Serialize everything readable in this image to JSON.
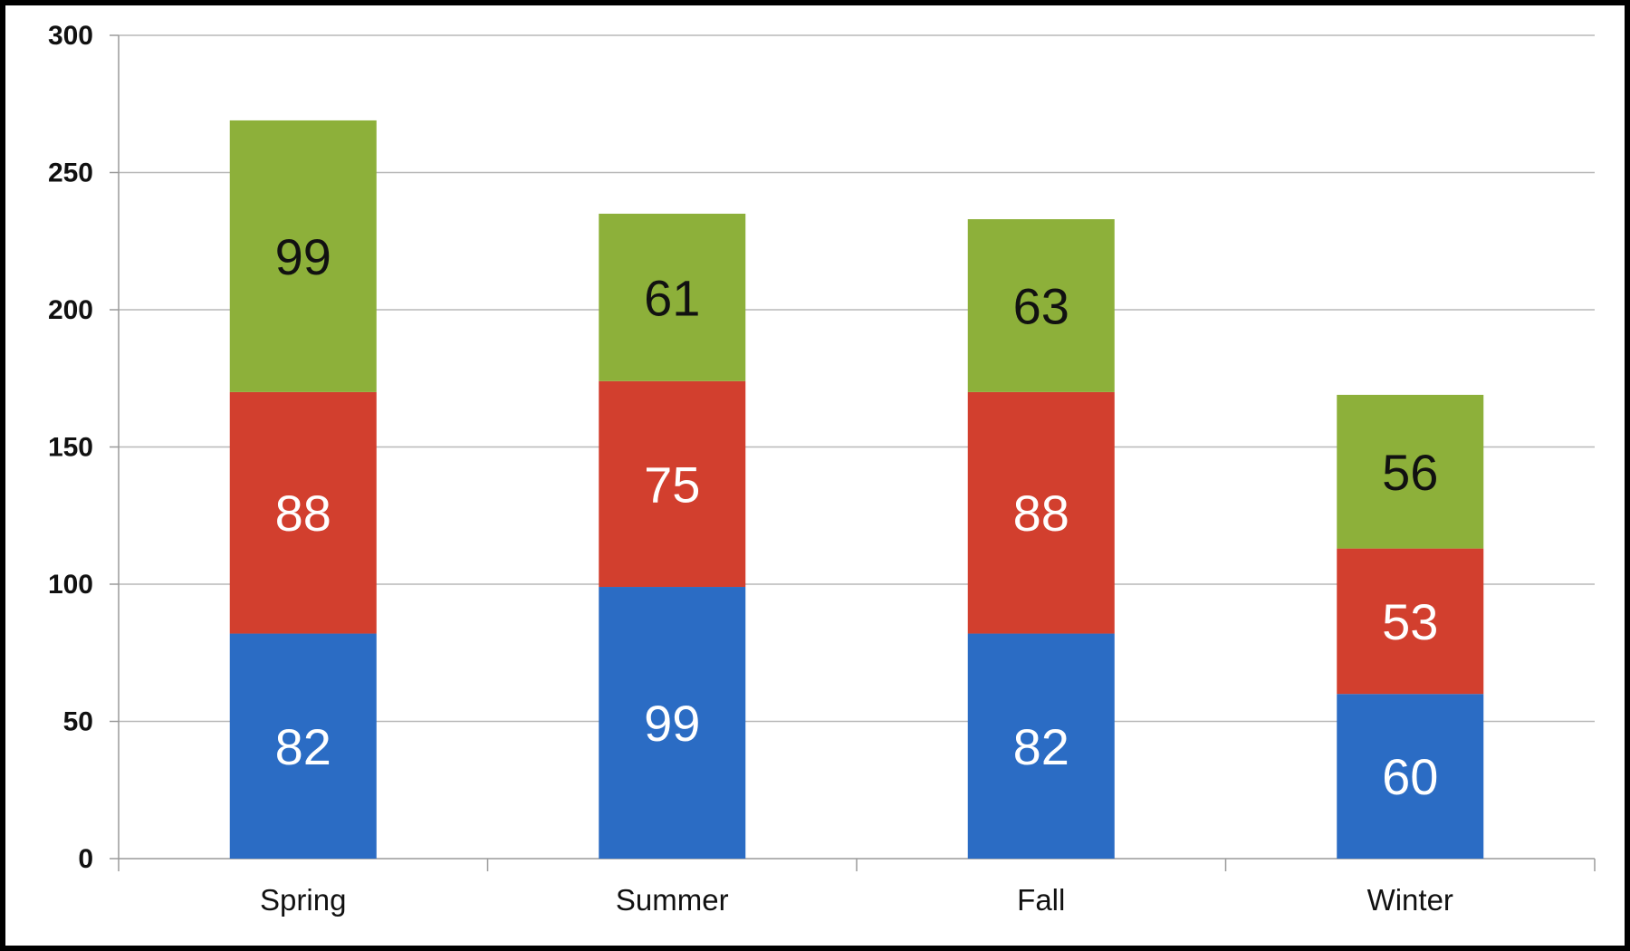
{
  "chart_data": {
    "type": "bar",
    "stacked": true,
    "title": "",
    "xlabel": "",
    "ylabel": "",
    "categories": [
      "Spring",
      "Summer",
      "Fall",
      "Winter"
    ],
    "series": [
      {
        "values": [
          82,
          99,
          82,
          60
        ],
        "color": "#2b6cc4",
        "label_color": "#ffffff"
      },
      {
        "values": [
          88,
          75,
          88,
          53
        ],
        "color": "#d23f2e",
        "label_color": "#ffffff"
      },
      {
        "values": [
          99,
          61,
          63,
          56
        ],
        "color": "#8db03a",
        "label_color": "#111111"
      }
    ],
    "ylim": [
      0,
      300
    ],
    "yticks": [
      0,
      50,
      100,
      150,
      200,
      250,
      300
    ],
    "ytick_labels": [
      "0",
      "50",
      "100",
      "150",
      "200",
      "250",
      "300"
    ],
    "grid": true,
    "legend": "none",
    "data_labels": true
  }
}
